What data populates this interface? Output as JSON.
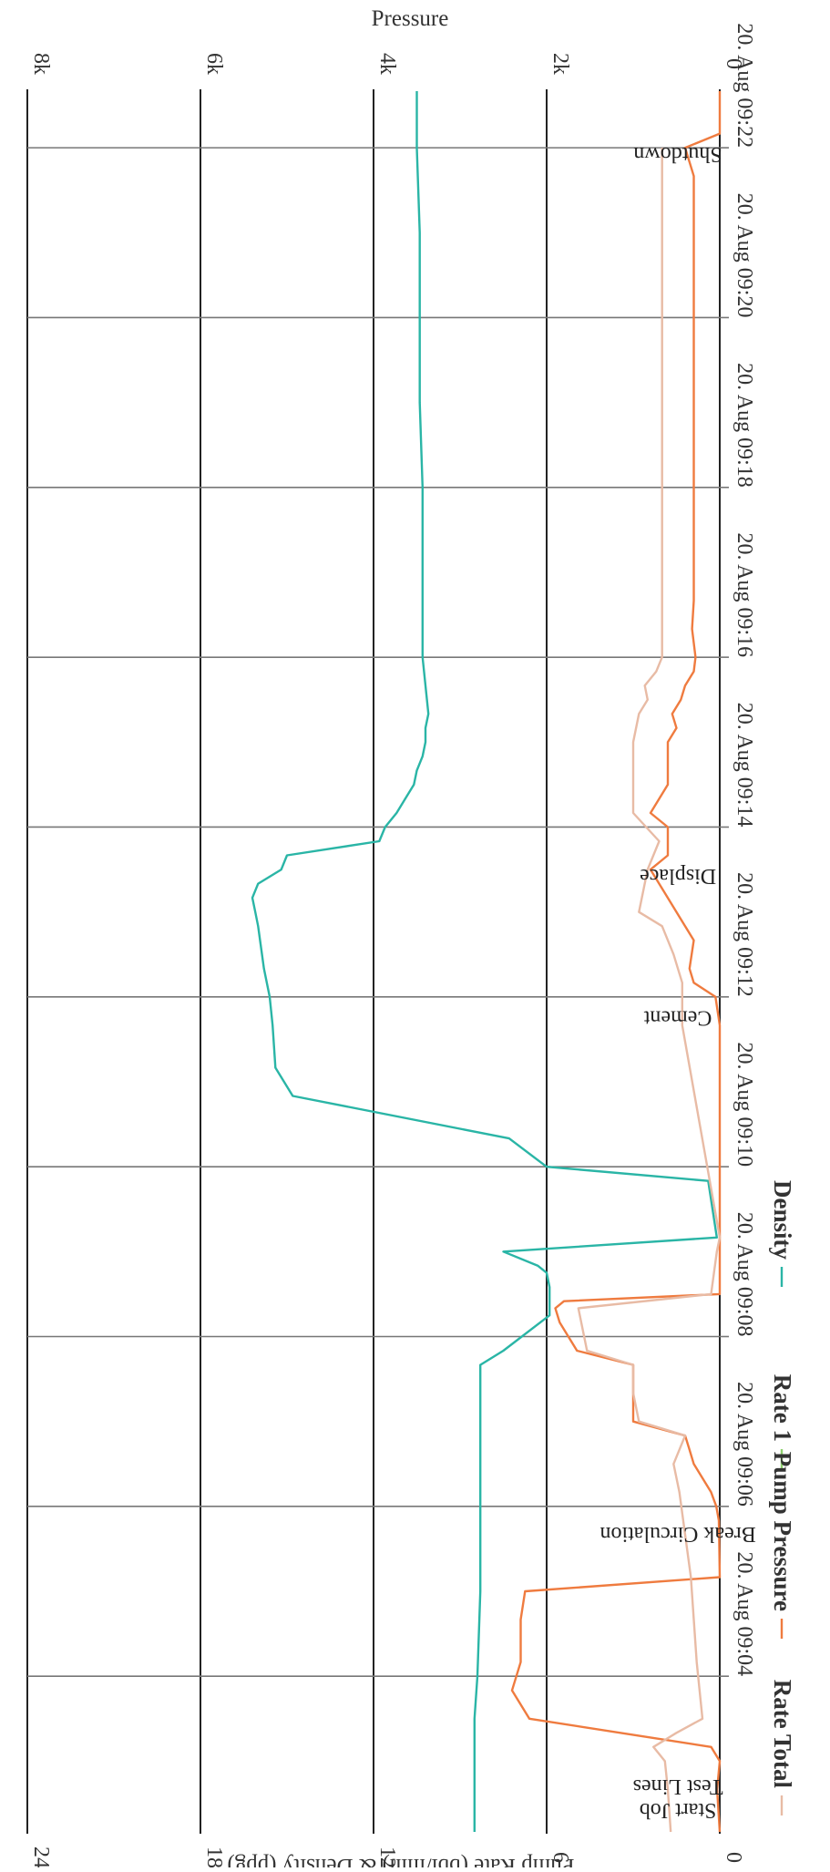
{
  "chart_data": {
    "type": "line",
    "title": "",
    "rotation": "rotated 90 degrees clockwise",
    "x_axis": {
      "type": "datetime",
      "range": [
        "20. Aug 09:02:10",
        "20. Aug 09:22:40"
      ],
      "tick_labels": [
        "20. Aug 09:04",
        "20. Aug 09:06",
        "20. Aug 09:08",
        "20. Aug 09:10",
        "20. Aug 09:12",
        "20. Aug 09:14",
        "20. Aug 09:16",
        "20. Aug 09:18",
        "20. Aug 09:20",
        "20. Aug 09:22"
      ],
      "tick_values": [
        "09:04",
        "09:06",
        "09:08",
        "09:10",
        "09:12",
        "09:14",
        "09:16",
        "09:18",
        "09:20",
        "09:22"
      ]
    },
    "y_axes": [
      {
        "id": "rate_density",
        "label": "Pump Rate (bbl/min) & Density (ppg)",
        "range": [
          0,
          24
        ],
        "tick_labels": [
          "0",
          "6",
          "12",
          "18",
          "24"
        ],
        "tick_values": [
          0,
          6,
          12,
          18,
          24
        ]
      },
      {
        "id": "pressure",
        "label": "Pressure",
        "range": [
          0,
          8000
        ],
        "tick_labels": [
          "0",
          "2k",
          "4k",
          "6k",
          "8k"
        ],
        "tick_values": [
          0,
          2000,
          4000,
          6000,
          8000
        ]
      }
    ],
    "grid": true,
    "legend_position": "bottom",
    "series": [
      {
        "name": "Density",
        "axis": "rate_density",
        "color": "#2ab5a6",
        "points": [
          [
            "09:02:10",
            8.5
          ],
          [
            "09:03:30",
            8.5
          ],
          [
            "09:04:00",
            8.4
          ],
          [
            "09:05:00",
            8.3
          ],
          [
            "09:06:10",
            8.3
          ],
          [
            "09:06:50",
            8.3
          ],
          [
            "09:07:00",
            8.3
          ],
          [
            "09:07:40",
            8.3
          ],
          [
            "09:07:50",
            7.5
          ],
          [
            "09:08:15",
            5.9
          ],
          [
            "09:08:35",
            5.9
          ],
          [
            "09:08:45",
            6.0
          ],
          [
            "09:08:50",
            6.3
          ],
          [
            "09:09:00",
            7.5
          ],
          [
            "09:09:10",
            0.1
          ],
          [
            "09:09:50",
            0.4
          ],
          [
            "09:10:00",
            6.0
          ],
          [
            "09:10:20",
            7.3
          ],
          [
            "09:10:50",
            14.8
          ],
          [
            "09:11:10",
            15.4
          ],
          [
            "09:11:40",
            15.5
          ],
          [
            "09:12:00",
            15.6
          ],
          [
            "09:12:20",
            15.8
          ],
          [
            "09:12:50",
            16.0
          ],
          [
            "09:13:00",
            16.1
          ],
          [
            "09:13:10",
            16.2
          ],
          [
            "09:13:20",
            16.0
          ],
          [
            "09:13:30",
            15.2
          ],
          [
            "09:13:40",
            15.0
          ],
          [
            "09:13:50",
            11.8
          ],
          [
            "09:14:00",
            11.6
          ],
          [
            "09:14:10",
            11.2
          ],
          [
            "09:14:20",
            10.9
          ],
          [
            "09:14:30",
            10.6
          ],
          [
            "09:14:40",
            10.5
          ],
          [
            "09:14:50",
            10.3
          ],
          [
            "09:15:00",
            10.2
          ],
          [
            "09:15:10",
            10.2
          ],
          [
            "09:15:20",
            10.1
          ],
          [
            "09:16:00",
            10.3
          ],
          [
            "09:16:30",
            10.3
          ],
          [
            "09:17:00",
            10.3
          ],
          [
            "09:18:00",
            10.3
          ],
          [
            "09:19:00",
            10.4
          ],
          [
            "09:20:00",
            10.4
          ],
          [
            "09:21:00",
            10.4
          ],
          [
            "09:22:00",
            10.5
          ],
          [
            "09:22:40",
            10.5
          ]
        ]
      },
      {
        "name": "Rate 1",
        "axis": "rate_density",
        "color": "#8fd16e",
        "points": []
      },
      {
        "name": "Pump Pressure",
        "axis": "pressure",
        "color": "#ef7b3f",
        "points": [
          [
            "09:02:10",
            0
          ],
          [
            "09:02:40",
            30
          ],
          [
            "09:03:00",
            0
          ],
          [
            "09:03:10",
            100
          ],
          [
            "09:03:30",
            2200
          ],
          [
            "09:03:50",
            2400
          ],
          [
            "09:04:10",
            2300
          ],
          [
            "09:04:40",
            2300
          ],
          [
            "09:05:00",
            2250
          ],
          [
            "09:05:10",
            0
          ],
          [
            "09:05:50",
            10
          ],
          [
            "09:06:00",
            40
          ],
          [
            "09:06:10",
            100
          ],
          [
            "09:06:20",
            200
          ],
          [
            "09:06:30",
            300
          ],
          [
            "09:06:40",
            350
          ],
          [
            "09:06:50",
            400
          ],
          [
            "09:07:00",
            1000
          ],
          [
            "09:07:20",
            1000
          ],
          [
            "09:07:40",
            1000
          ],
          [
            "09:07:50",
            1650
          ],
          [
            "09:08:00",
            1750
          ],
          [
            "09:08:10",
            1850
          ],
          [
            "09:08:20",
            1900
          ],
          [
            "09:08:25",
            1800
          ],
          [
            "09:08:30",
            0
          ],
          [
            "09:10:00",
            0
          ],
          [
            "09:11:40",
            0
          ],
          [
            "09:12:00",
            50
          ],
          [
            "09:12:10",
            300
          ],
          [
            "09:12:20",
            350
          ],
          [
            "09:12:40",
            300
          ],
          [
            "09:12:50",
            400
          ],
          [
            "09:13:30",
            800
          ],
          [
            "09:13:40",
            600
          ],
          [
            "09:14:00",
            600
          ],
          [
            "09:14:10",
            800
          ],
          [
            "09:14:30",
            600
          ],
          [
            "09:15:00",
            600
          ],
          [
            "09:15:10",
            500
          ],
          [
            "09:15:20",
            550
          ],
          [
            "09:15:30",
            450
          ],
          [
            "09:15:40",
            400
          ],
          [
            "09:15:50",
            300
          ],
          [
            "09:16:00",
            280
          ],
          [
            "09:16:20",
            320
          ],
          [
            "09:16:40",
            300
          ],
          [
            "09:17:00",
            300
          ],
          [
            "09:18:00",
            300
          ],
          [
            "09:19:00",
            300
          ],
          [
            "09:20:00",
            300
          ],
          [
            "09:21:00",
            300
          ],
          [
            "09:21:40",
            300
          ],
          [
            "09:22:00",
            400
          ],
          [
            "09:22:10",
            0
          ],
          [
            "09:22:40",
            0
          ]
        ]
      },
      {
        "name": "Rate Total",
        "axis": "rate_density",
        "color": "#e8bba5",
        "points": [
          [
            "09:02:10",
            1.7
          ],
          [
            "09:02:40",
            1.8
          ],
          [
            "09:03:00",
            1.9
          ],
          [
            "09:03:10",
            2.3
          ],
          [
            "09:03:20",
            1.5
          ],
          [
            "09:03:30",
            0.6
          ],
          [
            "09:04:10",
            0.8
          ],
          [
            "09:05:10",
            1.0
          ],
          [
            "09:06:10",
            1.4
          ],
          [
            "09:06:30",
            1.6
          ],
          [
            "09:06:50",
            1.2
          ],
          [
            "09:07:00",
            2.8
          ],
          [
            "09:07:20",
            3.0
          ],
          [
            "09:07:40",
            3.0
          ],
          [
            "09:07:50",
            4.6
          ],
          [
            "09:08:20",
            4.9
          ],
          [
            "09:08:30",
            0.3
          ],
          [
            "09:09:00",
            0.1
          ],
          [
            "09:09:10",
            0
          ],
          [
            "09:11:40",
            1.3
          ],
          [
            "09:12:10",
            1.3
          ],
          [
            "09:12:30",
            1.6
          ],
          [
            "09:12:50",
            2.0
          ],
          [
            "09:13:00",
            2.8
          ],
          [
            "09:13:30",
            2.5
          ],
          [
            "09:13:50",
            2.1
          ],
          [
            "09:14:10",
            3.0
          ],
          [
            "09:14:30",
            3.0
          ],
          [
            "09:15:00",
            3.0
          ],
          [
            "09:15:20",
            2.8
          ],
          [
            "09:15:30",
            2.5
          ],
          [
            "09:15:40",
            2.6
          ],
          [
            "09:15:50",
            2.2
          ],
          [
            "09:16:00",
            2.0
          ],
          [
            "09:16:20",
            2.0
          ],
          [
            "09:17:00",
            2.0
          ],
          [
            "09:18:00",
            2.0
          ],
          [
            "09:19:00",
            2.0
          ],
          [
            "09:20:00",
            2.0
          ],
          [
            "09:21:00",
            2.0
          ],
          [
            "09:22:00",
            2.0
          ]
        ]
      }
    ],
    "annotations": [
      {
        "time": "09:02:30",
        "lines": [
          "Start Job",
          "Test Lines"
        ]
      },
      {
        "time": "09:05:45",
        "lines": [
          "Break Circulation"
        ]
      },
      {
        "time": "09:11:50",
        "lines": [
          "Cement"
        ]
      },
      {
        "time": "09:13:30",
        "lines": [
          "Displace"
        ]
      },
      {
        "time": "09:22:00",
        "lines": [
          "Shutdown"
        ]
      }
    ]
  }
}
